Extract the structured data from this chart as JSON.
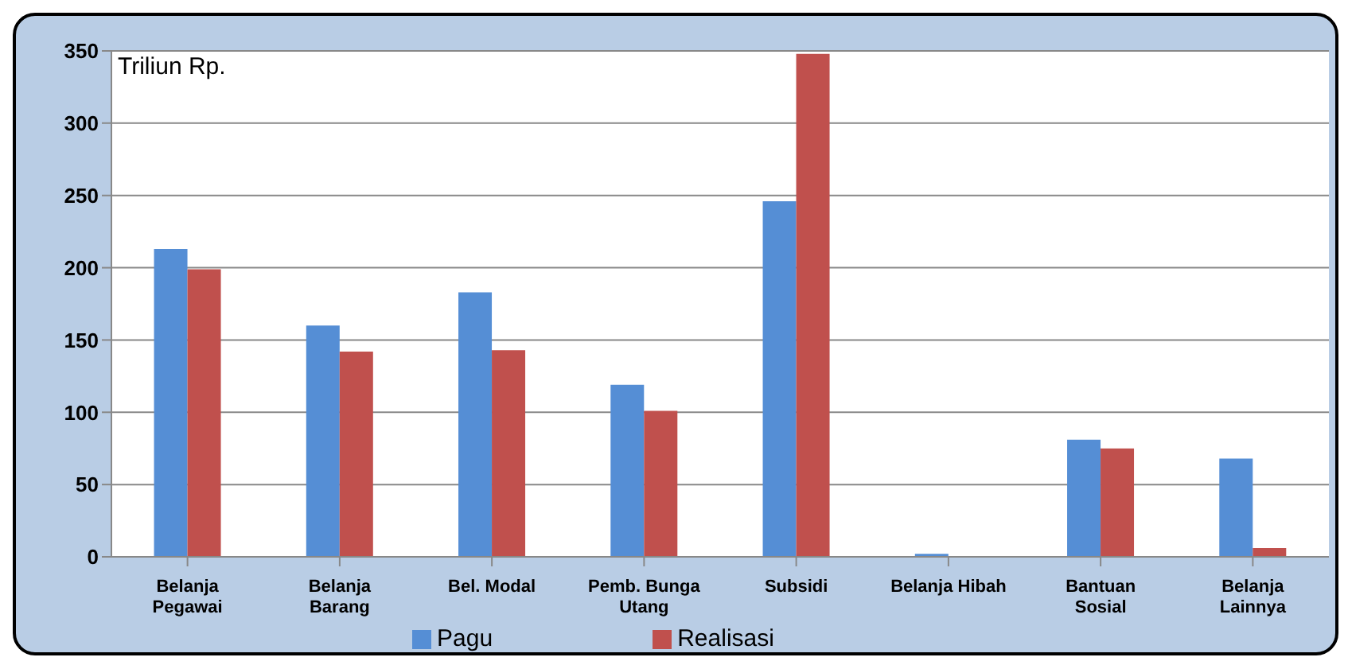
{
  "chart_data": {
    "type": "bar",
    "ylabel": "Triliun Rp.",
    "categories": [
      "Belanja Pegawai",
      "Belanja Barang",
      "Bel. Modal",
      "Pemb. Bunga Utang",
      "Subsidi",
      "Belanja Hibah",
      "Bantuan Sosial",
      "Belanja Lainnya"
    ],
    "series": [
      {
        "name": "Pagu",
        "color": "#558ed5",
        "values": [
          213,
          160,
          183,
          119,
          246,
          2,
          81,
          68
        ]
      },
      {
        "name": "Realisasi",
        "color": "#c0504d",
        "values": [
          199,
          142,
          143,
          101,
          348,
          0,
          75,
          6
        ]
      }
    ],
    "ylim": [
      0,
      350
    ],
    "yticks": [
      0,
      50,
      100,
      150,
      200,
      250,
      300,
      350
    ],
    "grid": "y",
    "legend": "bottom"
  }
}
